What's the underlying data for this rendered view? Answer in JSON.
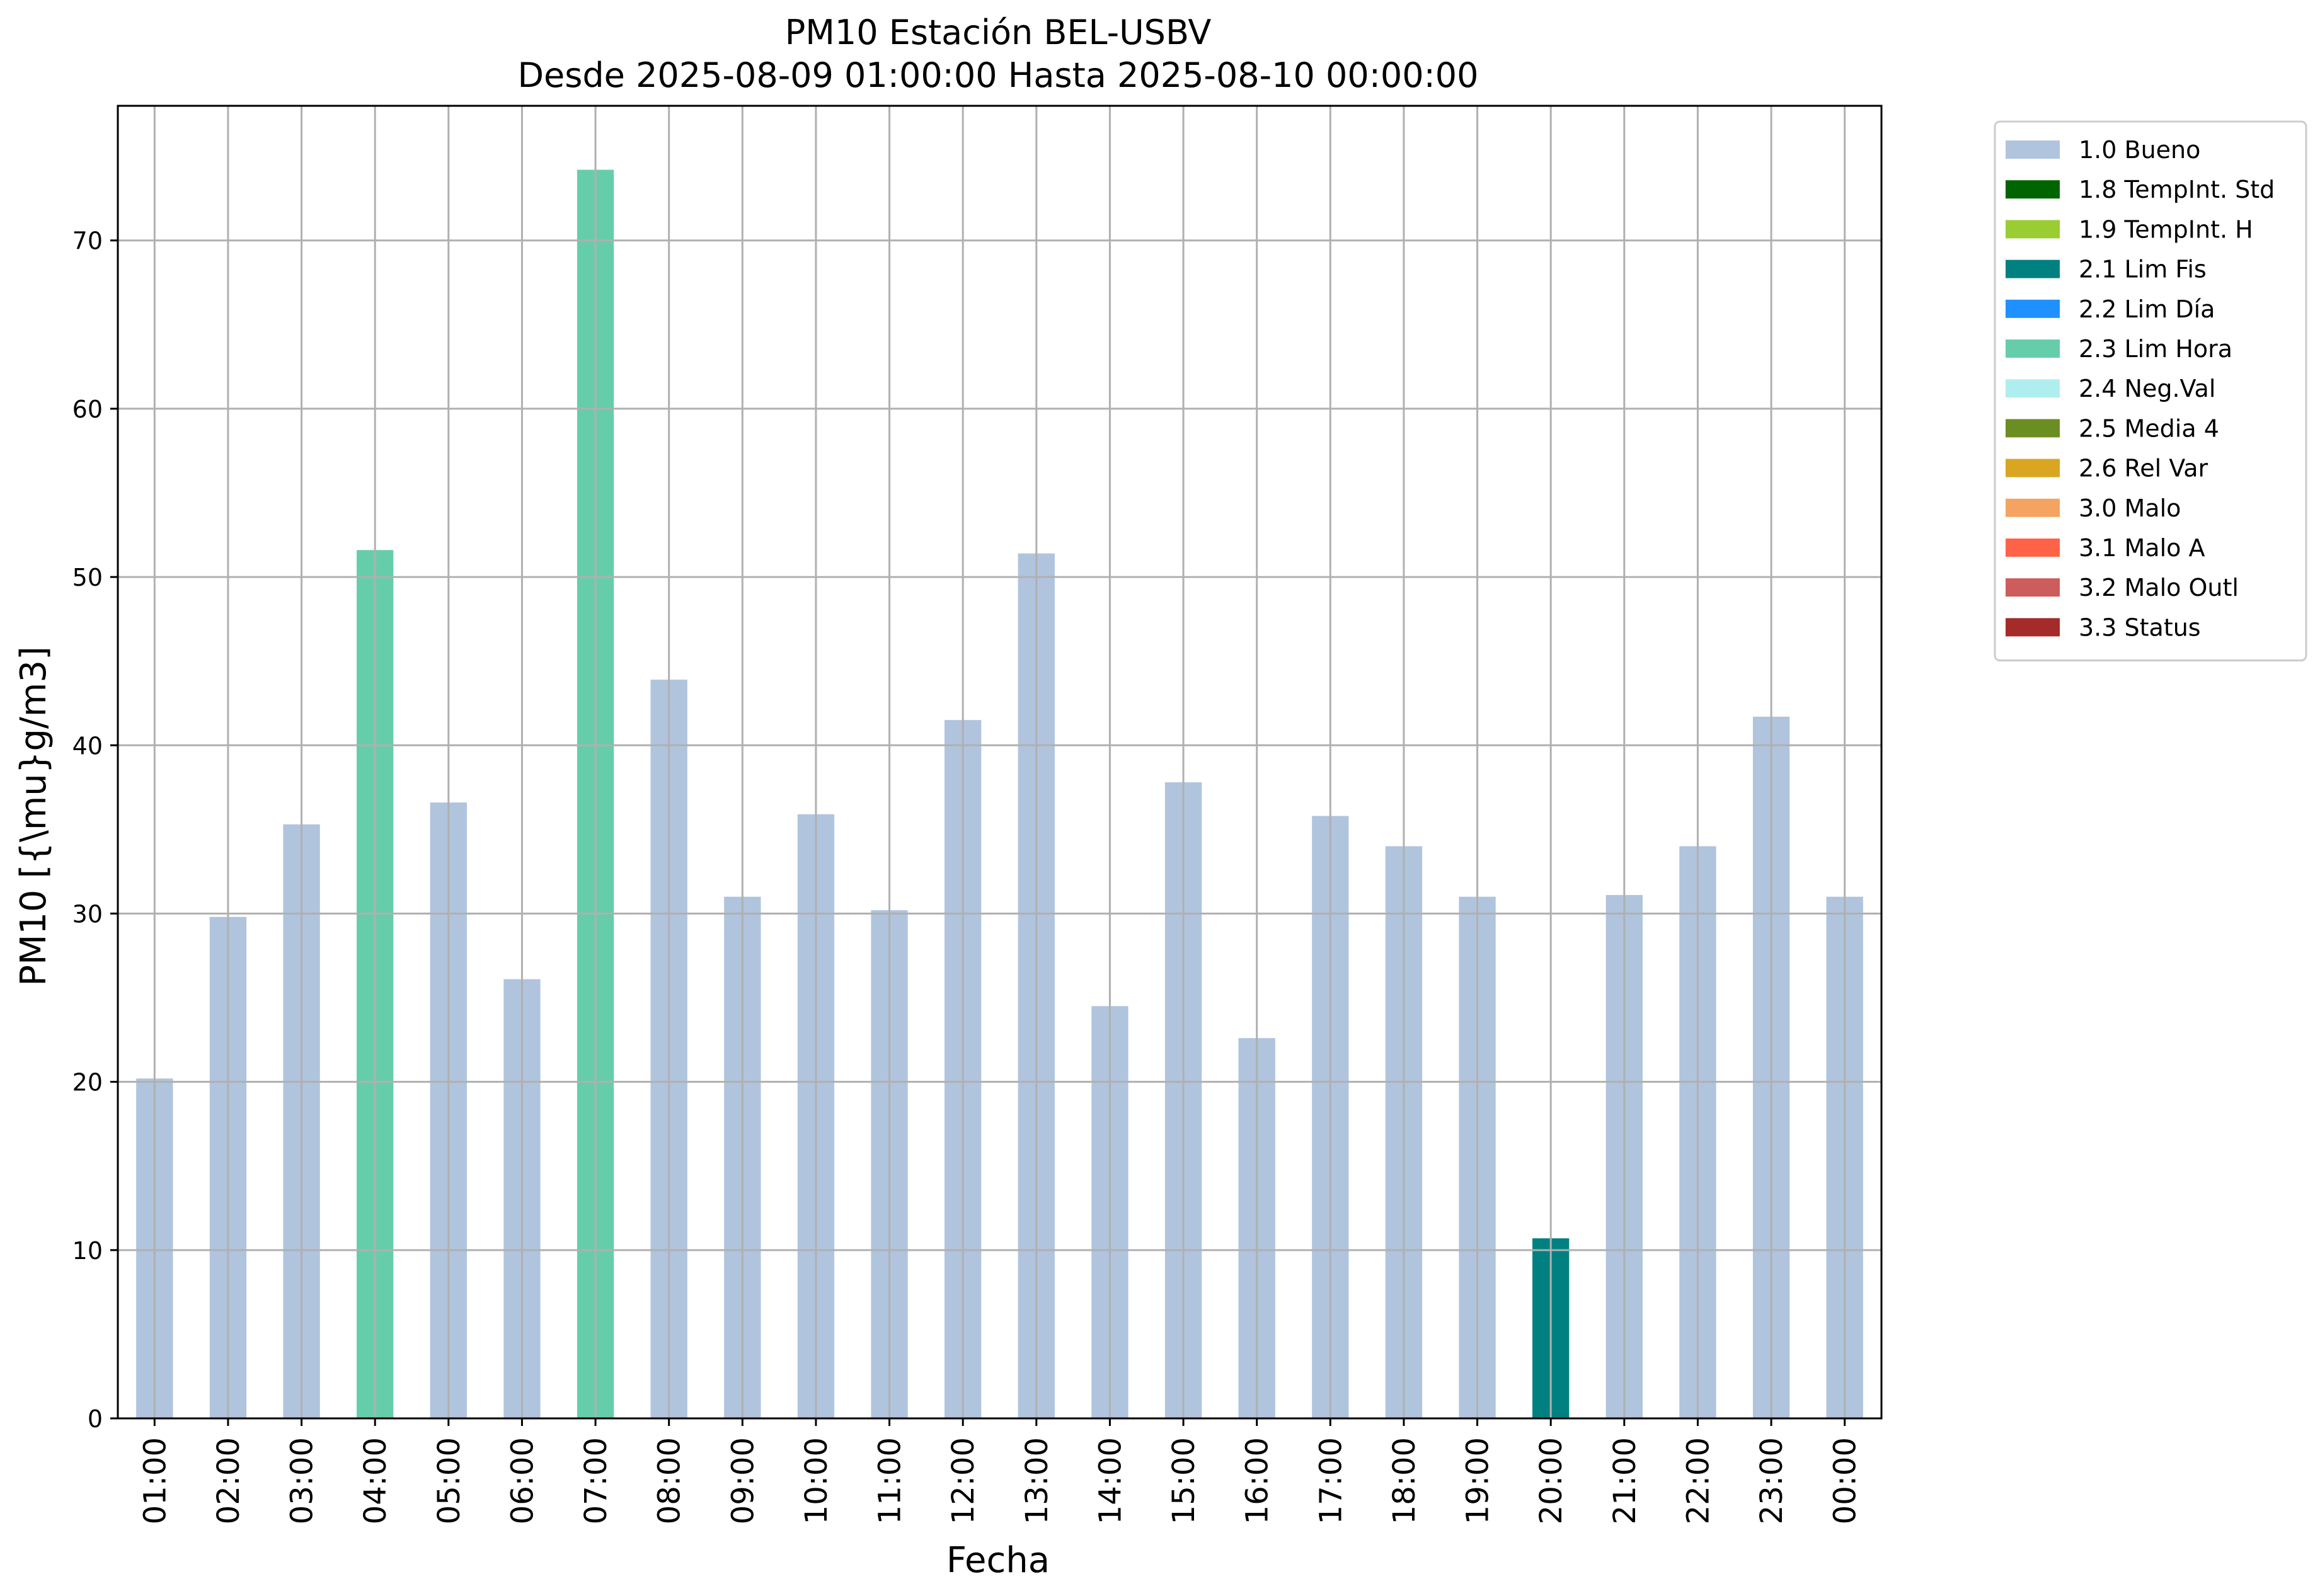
{
  "chart_data": {
    "type": "bar",
    "title": "PM10 Estación BEL-USBV",
    "subtitle": "Desde 2025-08-09 01:00:00 Hasta 2025-08-10 00:00:00",
    "xlabel": "Fecha",
    "ylabel": "PM10 [{\\mu}g/m3]",
    "ylim": [
      0,
      78
    ],
    "yticks": [
      0,
      10,
      20,
      30,
      40,
      50,
      60,
      70
    ],
    "grid": true,
    "legend_position": "outside-top-right",
    "categories": [
      "01:00",
      "02:00",
      "03:00",
      "04:00",
      "05:00",
      "06:00",
      "07:00",
      "08:00",
      "09:00",
      "10:00",
      "11:00",
      "12:00",
      "13:00",
      "14:00",
      "15:00",
      "16:00",
      "17:00",
      "18:00",
      "19:00",
      "20:00",
      "21:00",
      "22:00",
      "23:00",
      "00:00"
    ],
    "values": [
      20.2,
      29.8,
      35.3,
      51.6,
      36.6,
      26.1,
      74.2,
      43.9,
      31.0,
      35.9,
      30.2,
      41.5,
      51.4,
      24.5,
      37.8,
      22.6,
      35.8,
      34.0,
      31.0,
      10.7,
      31.1,
      34.0,
      41.7,
      31.0
    ],
    "flags": [
      "1.0 Bueno",
      "1.0 Bueno",
      "1.0 Bueno",
      "2.3 Lim Hora",
      "1.0 Bueno",
      "1.0 Bueno",
      "2.3 Lim Hora",
      "1.0 Bueno",
      "1.0 Bueno",
      "1.0 Bueno",
      "1.0 Bueno",
      "1.0 Bueno",
      "1.0 Bueno",
      "1.0 Bueno",
      "1.0 Bueno",
      "1.0 Bueno",
      "1.0 Bueno",
      "1.0 Bueno",
      "1.0 Bueno",
      "2.1 Lim Fis",
      "1.0 Bueno",
      "1.0 Bueno",
      "1.0 Bueno",
      "1.0 Bueno"
    ],
    "legend": [
      {
        "label": "1.0 Bueno",
        "color": "#b0c4de"
      },
      {
        "label": "1.8 TempInt. Std",
        "color": "#006400"
      },
      {
        "label": "1.9 TempInt. H",
        "color": "#9acd32"
      },
      {
        "label": "2.1 Lim Fis",
        "color": "#008080"
      },
      {
        "label": "2.2 Lim Día",
        "color": "#1e90ff"
      },
      {
        "label": "2.3 Lim Hora",
        "color": "#66cdaa"
      },
      {
        "label": "2.4 Neg.Val",
        "color": "#afeeee"
      },
      {
        "label": "2.5 Media 4",
        "color": "#6b8e23"
      },
      {
        "label": "2.6 Rel Var",
        "color": "#daa520"
      },
      {
        "label": "3.0 Malo",
        "color": "#f4a460"
      },
      {
        "label": "3.1 Malo A",
        "color": "#ff6347"
      },
      {
        "label": "3.2 Malo Outl",
        "color": "#cd5c5c"
      },
      {
        "label": "3.3 Status",
        "color": "#a52a2a"
      }
    ]
  }
}
